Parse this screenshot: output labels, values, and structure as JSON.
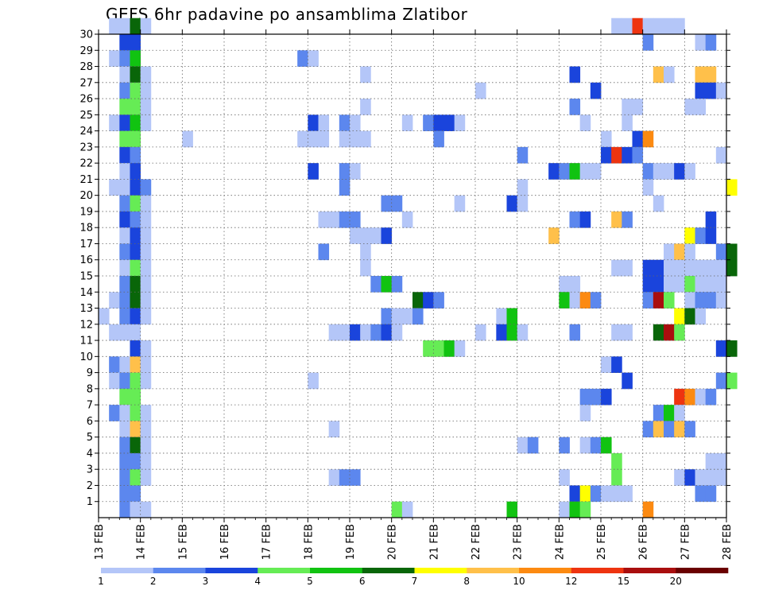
{
  "chart_data": {
    "type": "heatmap",
    "title": "GEFS 6hr padavine po ansamblima Zlatibor",
    "x_tick_labels": [
      "13 FEB",
      "14 FEB",
      "15 FEB",
      "16 FEB",
      "17 FEB",
      "18 FEB",
      "19 FEB",
      "20 FEB",
      "21 FEB",
      "22 FEB",
      "23 FEB",
      "24 FEB",
      "25 FEB",
      "26 FEB",
      "27 FEB",
      "28 FEB"
    ],
    "x_steps_per_day": 4,
    "x_range_steps": [
      0,
      60
    ],
    "y_tick_labels": [
      "1",
      "2",
      "3",
      "4",
      "5",
      "6",
      "7",
      "8",
      "9",
      "10",
      "11",
      "12",
      "13",
      "14",
      "15",
      "16",
      "17",
      "18",
      "19",
      "20",
      "21",
      "22",
      "23",
      "24",
      "25",
      "26",
      "27",
      "28",
      "29",
      "30"
    ],
    "y_range_members": [
      0,
      30
    ],
    "grid": true,
    "colorbar": {
      "placement": "bottom",
      "boundaries": [
        "1",
        "2",
        "3",
        "4",
        "5",
        "6",
        "7",
        "8",
        "10",
        "12",
        "15",
        "20"
      ],
      "colors": [
        "#b4c6f8",
        "#5c87ee",
        "#1a44dc",
        "#66ec55",
        "#11c311",
        "#096609",
        "#ffff00",
        "#ffc04a",
        "#fc8a11",
        "#ee3410",
        "#a90e0e",
        "#6a0000"
      ]
    },
    "cells_format": "[member, step, class]; step = 6h interval index from 13 FEB 00Z; class = colorbar color index",
    "cells": [
      [
        30,
        1,
        0
      ],
      [
        30,
        2,
        0
      ],
      [
        30,
        3,
        5
      ],
      [
        30,
        4,
        0
      ],
      [
        30,
        49,
        0
      ],
      [
        30,
        50,
        0
      ],
      [
        30,
        51,
        9
      ],
      [
        30,
        52,
        0
      ],
      [
        30,
        53,
        0
      ],
      [
        30,
        54,
        0
      ],
      [
        30,
        55,
        0
      ],
      [
        29,
        2,
        2
      ],
      [
        29,
        3,
        2
      ],
      [
        29,
        52,
        1
      ],
      [
        29,
        57,
        0
      ],
      [
        29,
        58,
        1
      ],
      [
        28,
        1,
        0
      ],
      [
        28,
        2,
        1
      ],
      [
        28,
        3,
        4
      ],
      [
        28,
        19,
        1
      ],
      [
        28,
        20,
        0
      ],
      [
        27,
        2,
        0
      ],
      [
        27,
        3,
        5
      ],
      [
        27,
        4,
        0
      ],
      [
        27,
        25,
        0
      ],
      [
        27,
        45,
        2
      ],
      [
        27,
        53,
        7
      ],
      [
        27,
        54,
        0
      ],
      [
        27,
        57,
        7
      ],
      [
        27,
        58,
        7
      ],
      [
        26,
        2,
        1
      ],
      [
        26,
        3,
        3
      ],
      [
        26,
        4,
        0
      ],
      [
        26,
        36,
        0
      ],
      [
        26,
        47,
        2
      ],
      [
        26,
        57,
        2
      ],
      [
        26,
        58,
        2
      ],
      [
        26,
        59,
        0
      ],
      [
        25,
        2,
        3
      ],
      [
        25,
        3,
        3
      ],
      [
        25,
        4,
        0
      ],
      [
        25,
        25,
        0
      ],
      [
        25,
        45,
        1
      ],
      [
        25,
        50,
        0
      ],
      [
        25,
        51,
        0
      ],
      [
        25,
        56,
        0
      ],
      [
        25,
        57,
        0
      ],
      [
        24,
        1,
        0
      ],
      [
        24,
        2,
        2
      ],
      [
        24,
        3,
        4
      ],
      [
        24,
        4,
        0
      ],
      [
        24,
        20,
        2
      ],
      [
        24,
        21,
        0
      ],
      [
        24,
        23,
        1
      ],
      [
        24,
        24,
        0
      ],
      [
        24,
        29,
        0
      ],
      [
        24,
        31,
        1
      ],
      [
        24,
        32,
        2
      ],
      [
        24,
        33,
        2
      ],
      [
        24,
        34,
        0
      ],
      [
        24,
        46,
        0
      ],
      [
        24,
        50,
        0
      ],
      [
        23,
        2,
        3
      ],
      [
        23,
        3,
        3
      ],
      [
        23,
        8,
        0
      ],
      [
        23,
        19,
        0
      ],
      [
        23,
        20,
        0
      ],
      [
        23,
        21,
        0
      ],
      [
        23,
        23,
        0
      ],
      [
        23,
        24,
        0
      ],
      [
        23,
        25,
        0
      ],
      [
        23,
        32,
        1
      ],
      [
        23,
        48,
        0
      ],
      [
        23,
        51,
        2
      ],
      [
        23,
        52,
        8
      ],
      [
        22,
        2,
        2
      ],
      [
        22,
        3,
        1
      ],
      [
        22,
        40,
        1
      ],
      [
        22,
        48,
        2
      ],
      [
        22,
        49,
        9
      ],
      [
        22,
        50,
        2
      ],
      [
        22,
        51,
        1
      ],
      [
        22,
        59,
        0
      ],
      [
        21,
        2,
        0
      ],
      [
        21,
        3,
        2
      ],
      [
        21,
        20,
        2
      ],
      [
        21,
        23,
        1
      ],
      [
        21,
        24,
        0
      ],
      [
        21,
        43,
        2
      ],
      [
        21,
        44,
        1
      ],
      [
        21,
        45,
        4
      ],
      [
        21,
        46,
        0
      ],
      [
        21,
        47,
        0
      ],
      [
        21,
        52,
        1
      ],
      [
        21,
        53,
        0
      ],
      [
        21,
        54,
        0
      ],
      [
        21,
        55,
        2
      ],
      [
        21,
        56,
        0
      ],
      [
        20,
        1,
        0
      ],
      [
        20,
        2,
        0
      ],
      [
        20,
        3,
        2
      ],
      [
        20,
        4,
        1
      ],
      [
        20,
        23,
        1
      ],
      [
        20,
        40,
        0
      ],
      [
        20,
        52,
        0
      ],
      [
        20,
        60,
        6
      ],
      [
        19,
        2,
        1
      ],
      [
        19,
        3,
        3
      ],
      [
        19,
        4,
        0
      ],
      [
        19,
        27,
        1
      ],
      [
        19,
        28,
        1
      ],
      [
        19,
        34,
        0
      ],
      [
        19,
        39,
        2
      ],
      [
        19,
        40,
        0
      ],
      [
        19,
        53,
        0
      ],
      [
        18,
        2,
        2
      ],
      [
        18,
        3,
        1
      ],
      [
        18,
        4,
        0
      ],
      [
        18,
        21,
        0
      ],
      [
        18,
        22,
        0
      ],
      [
        18,
        23,
        1
      ],
      [
        18,
        24,
        1
      ],
      [
        18,
        29,
        0
      ],
      [
        18,
        45,
        1
      ],
      [
        18,
        46,
        2
      ],
      [
        18,
        49,
        7
      ],
      [
        18,
        50,
        1
      ],
      [
        18,
        58,
        2
      ],
      [
        17,
        2,
        0
      ],
      [
        17,
        3,
        2
      ],
      [
        17,
        4,
        0
      ],
      [
        17,
        24,
        0
      ],
      [
        17,
        25,
        0
      ],
      [
        17,
        26,
        0
      ],
      [
        17,
        27,
        2
      ],
      [
        17,
        43,
        7
      ],
      [
        17,
        56,
        6
      ],
      [
        17,
        57,
        1
      ],
      [
        17,
        58,
        2
      ],
      [
        16,
        2,
        1
      ],
      [
        16,
        3,
        2
      ],
      [
        16,
        4,
        0
      ],
      [
        16,
        21,
        1
      ],
      [
        16,
        25,
        0
      ],
      [
        16,
        54,
        0
      ],
      [
        16,
        55,
        7
      ],
      [
        16,
        56,
        0
      ],
      [
        16,
        59,
        1
      ],
      [
        16,
        60,
        5
      ],
      [
        15,
        2,
        0
      ],
      [
        15,
        3,
        3
      ],
      [
        15,
        4,
        0
      ],
      [
        15,
        25,
        0
      ],
      [
        15,
        49,
        0
      ],
      [
        15,
        50,
        0
      ],
      [
        15,
        52,
        2
      ],
      [
        15,
        53,
        2
      ],
      [
        15,
        54,
        0
      ],
      [
        15,
        55,
        0
      ],
      [
        15,
        56,
        0
      ],
      [
        15,
        57,
        0
      ],
      [
        15,
        58,
        0
      ],
      [
        15,
        59,
        0
      ],
      [
        15,
        60,
        5
      ],
      [
        14,
        2,
        1
      ],
      [
        14,
        3,
        5
      ],
      [
        14,
        4,
        0
      ],
      [
        14,
        26,
        1
      ],
      [
        14,
        27,
        4
      ],
      [
        14,
        28,
        1
      ],
      [
        14,
        44,
        0
      ],
      [
        14,
        45,
        0
      ],
      [
        14,
        52,
        2
      ],
      [
        14,
        53,
        2
      ],
      [
        14,
        54,
        0
      ],
      [
        14,
        55,
        0
      ],
      [
        14,
        56,
        3
      ],
      [
        14,
        57,
        0
      ],
      [
        14,
        58,
        0
      ],
      [
        14,
        59,
        0
      ],
      [
        13,
        1,
        0
      ],
      [
        13,
        2,
        1
      ],
      [
        13,
        3,
        5
      ],
      [
        13,
        4,
        0
      ],
      [
        13,
        30,
        5
      ],
      [
        13,
        31,
        2
      ],
      [
        13,
        32,
        1
      ],
      [
        13,
        44,
        4
      ],
      [
        13,
        45,
        0
      ],
      [
        13,
        46,
        8
      ],
      [
        13,
        47,
        1
      ],
      [
        13,
        52,
        1
      ],
      [
        13,
        53,
        10
      ],
      [
        13,
        54,
        3
      ],
      [
        13,
        56,
        0
      ],
      [
        13,
        57,
        1
      ],
      [
        13,
        58,
        1
      ],
      [
        13,
        59,
        0
      ],
      [
        12,
        0,
        0
      ],
      [
        12,
        2,
        1
      ],
      [
        12,
        3,
        2
      ],
      [
        12,
        4,
        0
      ],
      [
        12,
        27,
        1
      ],
      [
        12,
        28,
        0
      ],
      [
        12,
        29,
        0
      ],
      [
        12,
        30,
        1
      ],
      [
        12,
        38,
        0
      ],
      [
        12,
        39,
        4
      ],
      [
        12,
        55,
        6
      ],
      [
        12,
        56,
        5
      ],
      [
        12,
        57,
        0
      ],
      [
        11,
        1,
        0
      ],
      [
        11,
        2,
        0
      ],
      [
        11,
        3,
        0
      ],
      [
        11,
        22,
        0
      ],
      [
        11,
        23,
        0
      ],
      [
        11,
        24,
        2
      ],
      [
        11,
        25,
        0
      ],
      [
        11,
        26,
        1
      ],
      [
        11,
        27,
        2
      ],
      [
        11,
        28,
        0
      ],
      [
        11,
        36,
        0
      ],
      [
        11,
        38,
        2
      ],
      [
        11,
        39,
        4
      ],
      [
        11,
        40,
        0
      ],
      [
        11,
        45,
        1
      ],
      [
        11,
        49,
        0
      ],
      [
        11,
        50,
        0
      ],
      [
        11,
        53,
        5
      ],
      [
        11,
        54,
        10
      ],
      [
        11,
        55,
        3
      ],
      [
        10,
        3,
        2
      ],
      [
        10,
        4,
        0
      ],
      [
        10,
        31,
        3
      ],
      [
        10,
        32,
        3
      ],
      [
        10,
        33,
        4
      ],
      [
        10,
        34,
        0
      ],
      [
        10,
        59,
        2
      ],
      [
        10,
        60,
        5
      ],
      [
        9,
        1,
        1
      ],
      [
        9,
        2,
        0
      ],
      [
        9,
        3,
        7
      ],
      [
        9,
        4,
        0
      ],
      [
        9,
        48,
        0
      ],
      [
        9,
        49,
        2
      ],
      [
        8,
        1,
        0
      ],
      [
        8,
        2,
        1
      ],
      [
        8,
        3,
        3
      ],
      [
        8,
        4,
        0
      ],
      [
        8,
        20,
        0
      ],
      [
        8,
        50,
        2
      ],
      [
        8,
        59,
        1
      ],
      [
        8,
        60,
        3
      ],
      [
        7,
        2,
        3
      ],
      [
        7,
        3,
        3
      ],
      [
        7,
        46,
        1
      ],
      [
        7,
        47,
        1
      ],
      [
        7,
        48,
        2
      ],
      [
        7,
        55,
        9
      ],
      [
        7,
        56,
        8
      ],
      [
        7,
        57,
        0
      ],
      [
        7,
        58,
        1
      ],
      [
        6,
        1,
        1
      ],
      [
        6,
        2,
        0
      ],
      [
        6,
        3,
        3
      ],
      [
        6,
        4,
        0
      ],
      [
        6,
        46,
        0
      ],
      [
        6,
        53,
        1
      ],
      [
        6,
        54,
        4
      ],
      [
        6,
        55,
        0
      ],
      [
        5,
        2,
        0
      ],
      [
        5,
        3,
        7
      ],
      [
        5,
        4,
        0
      ],
      [
        5,
        22,
        0
      ],
      [
        5,
        52,
        1
      ],
      [
        5,
        53,
        7
      ],
      [
        5,
        54,
        1
      ],
      [
        5,
        55,
        7
      ],
      [
        5,
        56,
        1
      ],
      [
        4,
        2,
        1
      ],
      [
        4,
        3,
        5
      ],
      [
        4,
        4,
        0
      ],
      [
        4,
        40,
        0
      ],
      [
        4,
        41,
        1
      ],
      [
        4,
        44,
        1
      ],
      [
        4,
        46,
        0
      ],
      [
        4,
        47,
        1
      ],
      [
        4,
        48,
        4
      ],
      [
        3,
        2,
        1
      ],
      [
        3,
        3,
        1
      ],
      [
        3,
        4,
        0
      ],
      [
        3,
        49,
        3
      ],
      [
        3,
        58,
        0
      ],
      [
        3,
        59,
        0
      ],
      [
        2,
        2,
        1
      ],
      [
        2,
        3,
        3
      ],
      [
        2,
        4,
        0
      ],
      [
        2,
        22,
        0
      ],
      [
        2,
        23,
        1
      ],
      [
        2,
        24,
        1
      ],
      [
        2,
        44,
        0
      ],
      [
        2,
        49,
        3
      ],
      [
        2,
        55,
        0
      ],
      [
        2,
        56,
        2
      ],
      [
        2,
        57,
        0
      ],
      [
        2,
        58,
        0
      ],
      [
        2,
        59,
        0
      ],
      [
        1,
        2,
        1
      ],
      [
        1,
        3,
        1
      ],
      [
        1,
        45,
        2
      ],
      [
        1,
        46,
        6
      ],
      [
        1,
        47,
        1
      ],
      [
        1,
        48,
        0
      ],
      [
        1,
        49,
        0
      ],
      [
        1,
        50,
        0
      ],
      [
        1,
        57,
        1
      ],
      [
        1,
        58,
        1
      ],
      [
        0,
        2,
        1
      ],
      [
        0,
        3,
        0
      ],
      [
        0,
        4,
        0
      ],
      [
        0,
        28,
        3
      ],
      [
        0,
        29,
        0
      ],
      [
        0,
        39,
        4
      ],
      [
        0,
        44,
        0
      ],
      [
        0,
        45,
        4
      ],
      [
        0,
        46,
        3
      ],
      [
        0,
        52,
        8
      ]
    ]
  }
}
